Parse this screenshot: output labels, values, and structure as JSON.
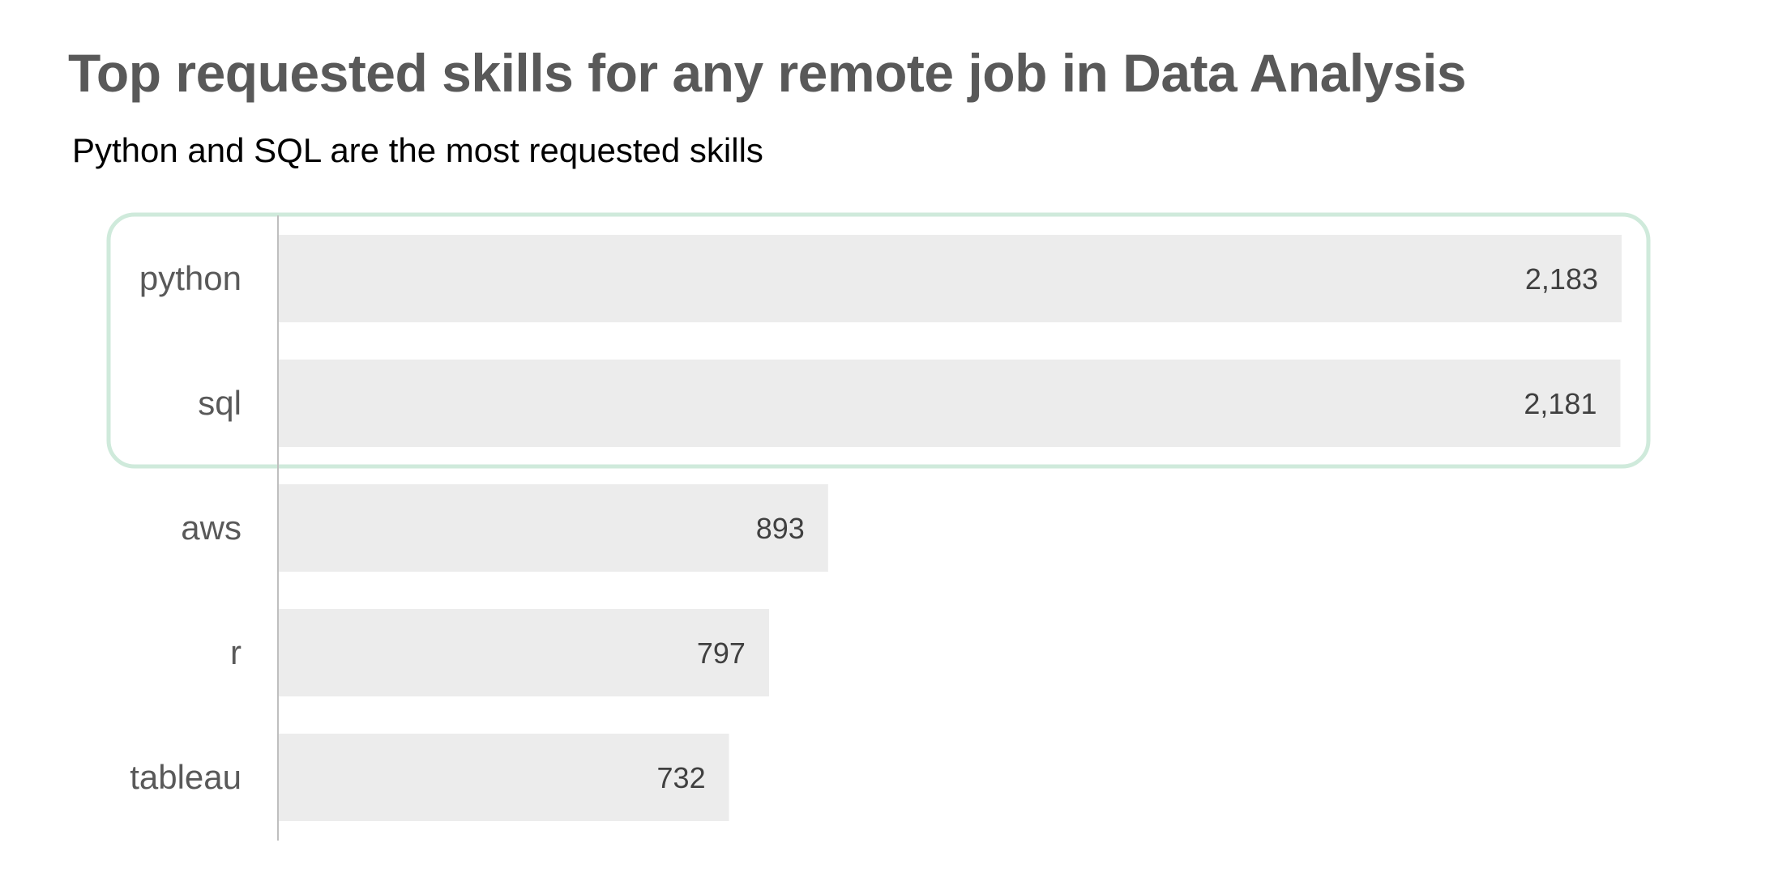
{
  "chart_data": {
    "type": "bar",
    "orientation": "horizontal",
    "title": "Top requested skills for any remote job in Data Analysis",
    "subtitle": "Python and SQL are the most requested skills",
    "categories": [
      "python",
      "sql",
      "aws",
      "r",
      "tableau"
    ],
    "values": [
      2183,
      2181,
      893,
      797,
      732
    ],
    "value_labels": [
      "2,183",
      "2,181",
      "893",
      "797",
      "732"
    ],
    "xlabel": "",
    "ylabel": "",
    "xlim": [
      0,
      2183
    ],
    "grid": false,
    "legend": "none",
    "highlight": {
      "categories": [
        "python",
        "sql"
      ],
      "style": "rounded outline"
    },
    "colors": {
      "bar": "#ececec",
      "highlight_outline": "#cfeadb",
      "axis_line": "#bfbfbf",
      "title": "#595959",
      "category_label": "#595959",
      "value_label": "#404040"
    }
  }
}
